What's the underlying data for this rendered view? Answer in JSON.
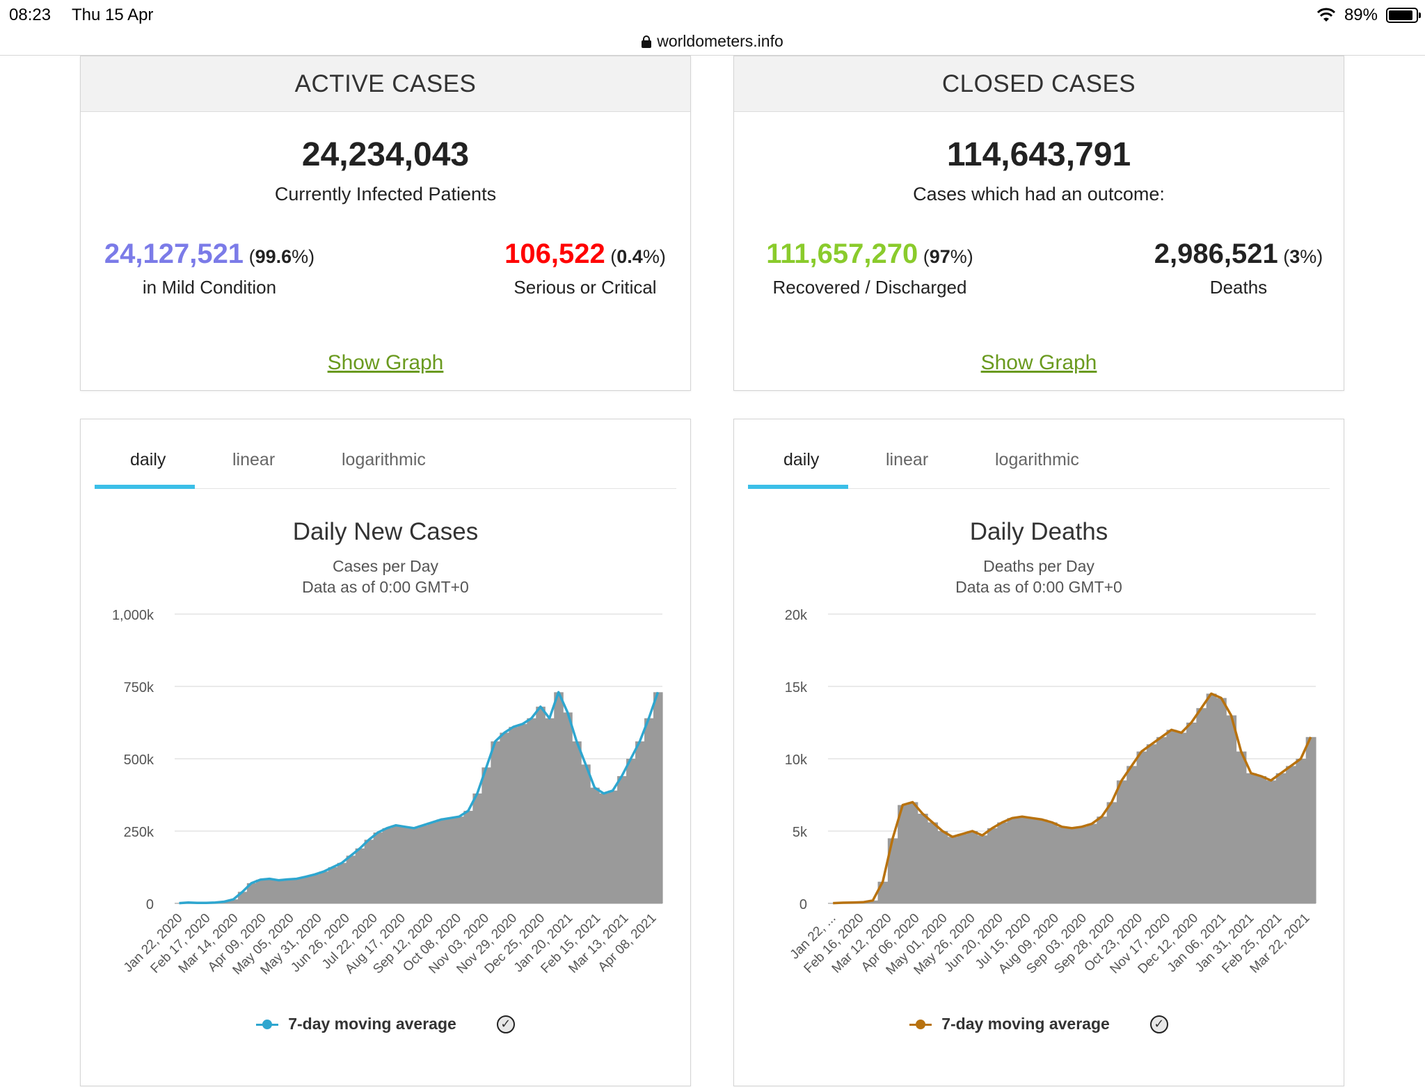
{
  "status_bar": {
    "time": "08:23",
    "date": "Thu 15 Apr",
    "battery": "89%",
    "battery_level": 0.89
  },
  "browser": {
    "url": "worldometers.info"
  },
  "active_cases": {
    "header": "ACTIVE CASES",
    "total": "24,234,043",
    "total_label": "Currently Infected Patients",
    "mild_value": "24,127,521",
    "mild_pct": "99.6",
    "mild_label": "in Mild Condition",
    "serious_value": "106,522",
    "serious_pct": "0.4",
    "serious_label": "Serious or Critical",
    "link": "Show Graph"
  },
  "closed_cases": {
    "header": "CLOSED CASES",
    "total": "114,643,791",
    "total_label": "Cases which had an outcome:",
    "recovered_value": "111,657,270",
    "recovered_pct": "97",
    "recovered_label": "Recovered / Discharged",
    "deaths_value": "2,986,521",
    "deaths_pct": "3",
    "deaths_label": "Deaths",
    "link": "Show Graph"
  },
  "colors": {
    "mild": "#7b7be8",
    "serious": "#ff0000",
    "recovered": "#8acb2c",
    "link": "#6a9a1f",
    "tab_accent": "#3bbfe8",
    "cases_avg": "#2ea6cf",
    "deaths_avg": "#b8720f",
    "bars": "#9a9a9a"
  },
  "cases_chart": {
    "tabs": [
      "daily",
      "linear",
      "logarithmic"
    ],
    "active_tab": "daily",
    "legend": "7-day moving average"
  },
  "deaths_chart": {
    "tabs": [
      "daily",
      "linear",
      "logarithmic"
    ],
    "active_tab": "daily",
    "legend": "7-day moving average"
  },
  "chart_data": [
    {
      "type": "bar",
      "title": "Daily New Cases",
      "subtitle": "Cases per Day",
      "note": "Data as of 0:00 GMT+0",
      "ylim": [
        0,
        1000000
      ],
      "yticks": [
        0,
        250000,
        500000,
        750000,
        1000000
      ],
      "ytick_labels": [
        "0",
        "250k",
        "500k",
        "750k",
        "1,000k"
      ],
      "xtick_labels": [
        "Jan 22, 2020",
        "Feb 17, 2020",
        "Mar 14, 2020",
        "Apr 09, 2020",
        "May 05, 2020",
        "May 31, 2020",
        "Jun 26, 2020",
        "Jul 22, 2020",
        "Aug 17, 2020",
        "Sep 12, 2020",
        "Oct 08, 2020",
        "Nov 03, 2020",
        "Nov 29, 2020",
        "Dec 25, 2020",
        "Jan 20, 2021",
        "Feb 15, 2021",
        "Mar 13, 2021",
        "Apr 08, 2021"
      ],
      "grid": true,
      "series": [
        {
          "name": "Daily Cases",
          "kind": "bar",
          "weekly_values": [
            1000,
            3000,
            2000,
            2000,
            3000,
            6000,
            14000,
            40000,
            70000,
            82000,
            85000,
            80000,
            83000,
            85000,
            92000,
            100000,
            110000,
            125000,
            140000,
            165000,
            190000,
            220000,
            245000,
            260000,
            270000,
            265000,
            260000,
            270000,
            280000,
            290000,
            295000,
            300000,
            320000,
            380000,
            470000,
            560000,
            590000,
            610000,
            620000,
            640000,
            680000,
            640000,
            730000,
            660000,
            560000,
            480000,
            400000,
            380000,
            390000,
            440000,
            500000,
            560000,
            640000,
            730000
          ]
        },
        {
          "name": "7-day moving average",
          "kind": "line",
          "weekly_values": [
            1000,
            3000,
            2000,
            2000,
            3000,
            6000,
            14000,
            40000,
            70000,
            82000,
            85000,
            80000,
            83000,
            85000,
            92000,
            100000,
            110000,
            125000,
            140000,
            165000,
            190000,
            220000,
            245000,
            260000,
            270000,
            265000,
            260000,
            270000,
            280000,
            290000,
            295000,
            300000,
            320000,
            380000,
            470000,
            560000,
            590000,
            610000,
            620000,
            640000,
            680000,
            640000,
            730000,
            660000,
            560000,
            480000,
            400000,
            380000,
            390000,
            440000,
            500000,
            560000,
            640000,
            730000
          ]
        }
      ]
    },
    {
      "type": "bar",
      "title": "Daily Deaths",
      "subtitle": "Deaths per Day",
      "note": "Data as of 0:00 GMT+0",
      "ylim": [
        0,
        20000
      ],
      "yticks": [
        0,
        5000,
        10000,
        15000,
        20000
      ],
      "ytick_labels": [
        "0",
        "5k",
        "10k",
        "15k",
        "20k"
      ],
      "xtick_labels": [
        "Jan 22, ...",
        "Feb 16, 2020",
        "Mar 12, 2020",
        "Apr 06, 2020",
        "May 01, 2020",
        "May 26, 2020",
        "Jun 20, 2020",
        "Jul 15, 2020",
        "Aug 09, 2020",
        "Sep 03, 2020",
        "Sep 28, 2020",
        "Oct 23, 2020",
        "Nov 17, 2020",
        "Dec 12, 2020",
        "Jan 06, 2021",
        "Jan 31, 2021",
        "Feb 25, 2021",
        "Mar 22, 2021"
      ],
      "grid": true,
      "series": [
        {
          "name": "Daily Deaths",
          "kind": "bar",
          "weekly_values": [
            20,
            50,
            60,
            80,
            200,
            1500,
            4500,
            6800,
            7000,
            6200,
            5600,
            5000,
            4600,
            4800,
            5000,
            4700,
            5200,
            5600,
            5900,
            6000,
            5900,
            5800,
            5600,
            5300,
            5200,
            5300,
            5500,
            6000,
            7000,
            8500,
            9500,
            10500,
            11000,
            11500,
            12000,
            11800,
            12500,
            13500,
            14500,
            14200,
            13000,
            10500,
            9000,
            8800,
            8500,
            9000,
            9500,
            10000,
            11500
          ]
        },
        {
          "name": "7-day moving average",
          "kind": "line",
          "weekly_values": [
            20,
            50,
            60,
            80,
            200,
            1500,
            4500,
            6800,
            7000,
            6200,
            5600,
            5000,
            4600,
            4800,
            5000,
            4700,
            5200,
            5600,
            5900,
            6000,
            5900,
            5800,
            5600,
            5300,
            5200,
            5300,
            5500,
            6000,
            7000,
            8500,
            9500,
            10500,
            11000,
            11500,
            12000,
            11800,
            12500,
            13500,
            14500,
            14200,
            13000,
            10500,
            9000,
            8800,
            8500,
            9000,
            9500,
            10000,
            11500
          ]
        }
      ]
    }
  ]
}
